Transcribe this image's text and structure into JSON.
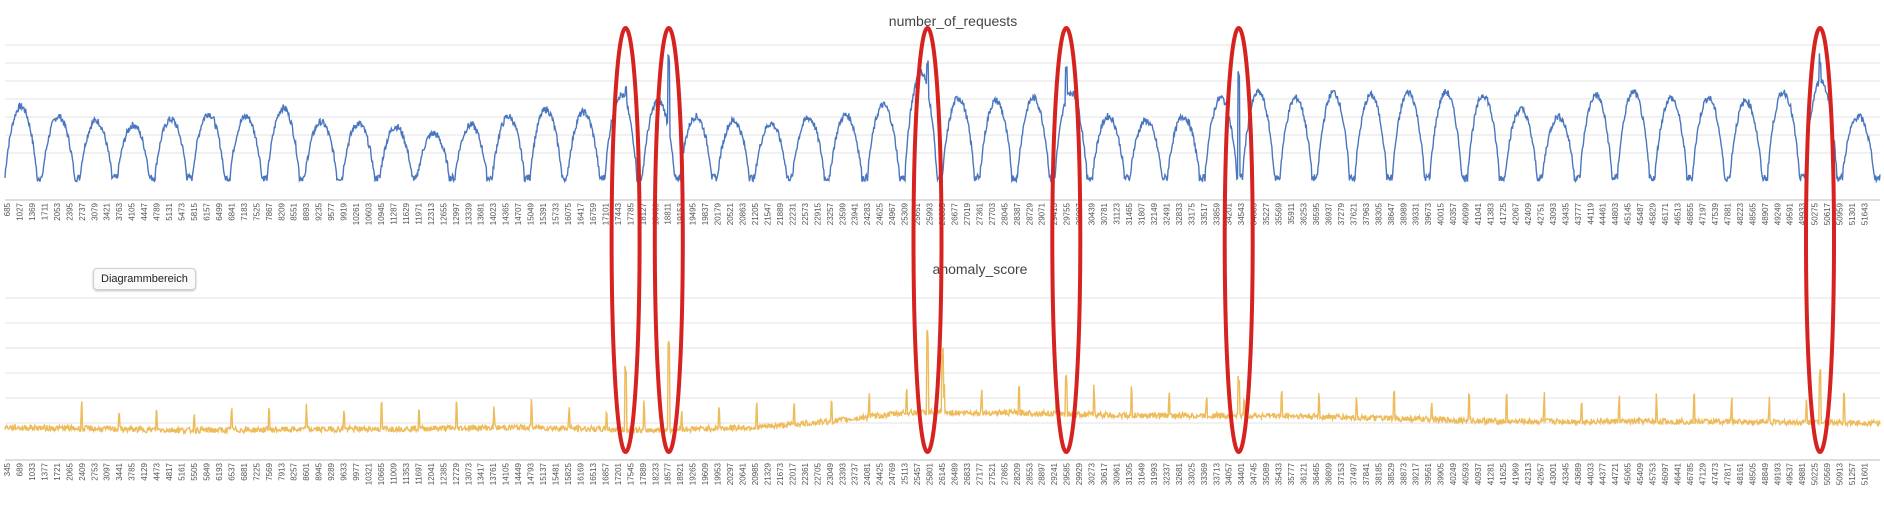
{
  "tooltip": "Diagrammbereich",
  "colors": {
    "requests": "#4a76bf",
    "anomaly": "#eebb5a",
    "highlight": "#d62320"
  },
  "chart_data": [
    {
      "type": "line",
      "title": "number_of_requests",
      "series": [
        {
          "name": "",
          "color": "#4a76bf"
        }
      ],
      "x_tick_labels": [
        "685",
        "1027",
        "1369",
        "1711",
        "2053",
        "2395",
        "2737",
        "3079",
        "3421",
        "3763",
        "4105",
        "4447",
        "4789",
        "5131",
        "5473",
        "5815",
        "6157",
        "6499",
        "6841",
        "7183",
        "7525",
        "7867",
        "8209",
        "8551",
        "8893",
        "9235",
        "9577",
        "9919",
        "10261",
        "10603",
        "10945",
        "11287",
        "11629",
        "11971",
        "12313",
        "12655",
        "12997",
        "13339",
        "13681",
        "14023",
        "14365",
        "14707",
        "15049",
        "15391",
        "15733",
        "16075",
        "16417",
        "16759",
        "17101",
        "17443",
        "17785",
        "18127",
        "18469",
        "18811",
        "19153",
        "19495",
        "19837",
        "20179",
        "20521",
        "20863",
        "21205",
        "21547",
        "21889",
        "22231",
        "22573",
        "22915",
        "23257",
        "23599",
        "23941",
        "24283",
        "24625",
        "24967",
        "25309",
        "25651",
        "25993",
        "26335",
        "26677",
        "27019",
        "27361",
        "27703",
        "28045",
        "28387",
        "28729",
        "29071",
        "29413",
        "29755",
        "30097",
        "30439",
        "30781",
        "31123",
        "31465",
        "31807",
        "32149",
        "32491",
        "32833",
        "33175",
        "33517",
        "33859",
        "34201",
        "34543",
        "34885",
        "35227",
        "35569",
        "35911",
        "36253",
        "36595",
        "36937",
        "37279",
        "37621",
        "37963",
        "38305",
        "38647",
        "38989",
        "39331",
        "39673",
        "40015",
        "40357",
        "40699",
        "41041",
        "41383",
        "41725",
        "42067",
        "42409",
        "42751",
        "43093",
        "43435",
        "43777",
        "44119",
        "44461",
        "44803",
        "45145",
        "45487",
        "45829",
        "46171",
        "46513",
        "46855",
        "47197",
        "47539",
        "47881",
        "48223",
        "48565",
        "48907",
        "49249",
        "49591",
        "49933",
        "50275",
        "50617",
        "50959",
        "51301",
        "51643"
      ],
      "peaks": [
        {
          "day": 0.5,
          "peak": 0.62
        },
        {
          "day": 1.5,
          "peak": 0.55
        },
        {
          "day": 2.5,
          "peak": 0.52
        },
        {
          "day": 3.5,
          "peak": 0.49
        },
        {
          "day": 4.5,
          "peak": 0.53
        },
        {
          "day": 5.5,
          "peak": 0.57
        },
        {
          "day": 6.5,
          "peak": 0.55
        },
        {
          "day": 7.5,
          "peak": 0.61
        },
        {
          "day": 8.5,
          "peak": 0.51
        },
        {
          "day": 9.5,
          "peak": 0.5
        },
        {
          "day": 10.5,
          "peak": 0.48
        },
        {
          "day": 11.5,
          "peak": 0.43
        },
        {
          "day": 12.5,
          "peak": 0.49
        },
        {
          "day": 13.5,
          "peak": 0.55
        },
        {
          "day": 14.5,
          "peak": 0.6
        },
        {
          "day": 15.5,
          "peak": 0.58
        },
        {
          "day": 16.5,
          "peak": 0.7
        },
        {
          "day": 17.5,
          "peak": 0.66
        },
        {
          "day": 18.5,
          "peak": 0.55
        },
        {
          "day": 19.5,
          "peak": 0.52
        },
        {
          "day": 20.5,
          "peak": 0.5
        },
        {
          "day": 21.5,
          "peak": 0.54
        },
        {
          "day": 22.5,
          "peak": 0.56
        },
        {
          "day": 23.5,
          "peak": 0.63
        },
        {
          "day": 24.5,
          "peak": 0.86
        },
        {
          "day": 25.5,
          "peak": 0.68
        },
        {
          "day": 26.5,
          "peak": 0.66
        },
        {
          "day": 27.5,
          "peak": 0.68
        },
        {
          "day": 28.5,
          "peak": 0.72
        },
        {
          "day": 29.5,
          "peak": 0.55
        },
        {
          "day": 30.5,
          "peak": 0.52
        },
        {
          "day": 31.5,
          "peak": 0.55
        },
        {
          "day": 32.5,
          "peak": 0.68
        },
        {
          "day": 33.5,
          "peak": 0.72
        },
        {
          "day": 34.5,
          "peak": 0.68
        },
        {
          "day": 35.5,
          "peak": 0.72
        },
        {
          "day": 36.5,
          "peak": 0.7
        },
        {
          "day": 37.5,
          "peak": 0.72
        },
        {
          "day": 38.5,
          "peak": 0.72
        },
        {
          "day": 39.5,
          "peak": 0.7
        },
        {
          "day": 40.5,
          "peak": 0.6
        },
        {
          "day": 41.5,
          "peak": 0.55
        },
        {
          "day": 42.5,
          "peak": 0.7
        },
        {
          "day": 43.5,
          "peak": 0.72
        },
        {
          "day": 44.5,
          "peak": 0.68
        },
        {
          "day": 45.5,
          "peak": 0.68
        },
        {
          "day": 46.5,
          "peak": 0.66
        },
        {
          "day": 47.5,
          "peak": 0.72
        },
        {
          "day": 48.5,
          "peak": 0.8
        },
        {
          "day": 49.5,
          "peak": 0.55
        }
      ],
      "spikes": [
        {
          "day": 16.55,
          "value": 0.78
        },
        {
          "day": 17.7,
          "value": 1.0
        },
        {
          "day": 24.6,
          "value": 1.0
        },
        {
          "day": 28.3,
          "value": 0.95
        },
        {
          "day": 32.9,
          "value": 0.88
        },
        {
          "day": 48.4,
          "value": 1.0
        }
      ],
      "baseline": 0.12,
      "ylim": [
        0,
        1.05
      ]
    },
    {
      "type": "line",
      "title": "anomaly_score",
      "series": [
        {
          "name": "",
          "color": "#eebb5a"
        }
      ],
      "x_tick_labels": [
        "345",
        "689",
        "1033",
        "1377",
        "1721",
        "2065",
        "2409",
        "2753",
        "3097",
        "3441",
        "3785",
        "4129",
        "4473",
        "4817",
        "5161",
        "5505",
        "5849",
        "6193",
        "6537",
        "6881",
        "7225",
        "7569",
        "7913",
        "8257",
        "8601",
        "8945",
        "9289",
        "9633",
        "9977",
        "10321",
        "10665",
        "11009",
        "11353",
        "11697",
        "12041",
        "12385",
        "12729",
        "13073",
        "13417",
        "13761",
        "14105",
        "14449",
        "14793",
        "15137",
        "15481",
        "15825",
        "16169",
        "16513",
        "16857",
        "17201",
        "17545",
        "17889",
        "18233",
        "18577",
        "18921",
        "19265",
        "19609",
        "19953",
        "20297",
        "20641",
        "20985",
        "21329",
        "21673",
        "22017",
        "22361",
        "22705",
        "23049",
        "23393",
        "23737",
        "24081",
        "24425",
        "24769",
        "25113",
        "25457",
        "25801",
        "26145",
        "26489",
        "26833",
        "27177",
        "27521",
        "27865",
        "28209",
        "28553",
        "28897",
        "29241",
        "29585",
        "29929",
        "30273",
        "30617",
        "30961",
        "31305",
        "31649",
        "31993",
        "32337",
        "32681",
        "33025",
        "33369",
        "33713",
        "34057",
        "34401",
        "34745",
        "35089",
        "35433",
        "35777",
        "36121",
        "36465",
        "36809",
        "37153",
        "37497",
        "37841",
        "38185",
        "38529",
        "38873",
        "39217",
        "39561",
        "39905",
        "40249",
        "40593",
        "40937",
        "41281",
        "41625",
        "41969",
        "42313",
        "42657",
        "43001",
        "43345",
        "43689",
        "44033",
        "44377",
        "44721",
        "45065",
        "45409",
        "45753",
        "46097",
        "46441",
        "46785",
        "47129",
        "47473",
        "47817",
        "48161",
        "48505",
        "48849",
        "49193",
        "49537",
        "49881",
        "50225",
        "50569",
        "50913",
        "51257",
        "51601"
      ],
      "level": [
        {
          "day": 0,
          "value": 0.12
        },
        {
          "day": 5,
          "value": 0.1
        },
        {
          "day": 10,
          "value": 0.11
        },
        {
          "day": 14,
          "value": 0.12
        },
        {
          "day": 17,
          "value": 0.1
        },
        {
          "day": 20,
          "value": 0.12
        },
        {
          "day": 22,
          "value": 0.16
        },
        {
          "day": 24,
          "value": 0.22
        },
        {
          "day": 27,
          "value": 0.22
        },
        {
          "day": 30,
          "value": 0.2
        },
        {
          "day": 34,
          "value": 0.2
        },
        {
          "day": 40,
          "value": 0.16
        },
        {
          "day": 45,
          "value": 0.16
        },
        {
          "day": 50,
          "value": 0.15
        }
      ],
      "spikes": [
        {
          "day": 16.55,
          "value": 0.55
        },
        {
          "day": 17.7,
          "value": 0.72
        },
        {
          "day": 24.6,
          "value": 0.78
        },
        {
          "day": 25.0,
          "value": 0.68
        },
        {
          "day": 28.3,
          "value": 0.48
        },
        {
          "day": 32.9,
          "value": 0.5
        },
        {
          "day": 48.4,
          "value": 0.52
        }
      ],
      "ylim": [
        0,
        1.0
      ]
    }
  ],
  "highlights": [
    {
      "day": 16.55
    },
    {
      "day": 17.7
    },
    {
      "day": 24.6
    },
    {
      "day": 28.3
    },
    {
      "day": 32.9
    },
    {
      "day": 48.4
    }
  ]
}
